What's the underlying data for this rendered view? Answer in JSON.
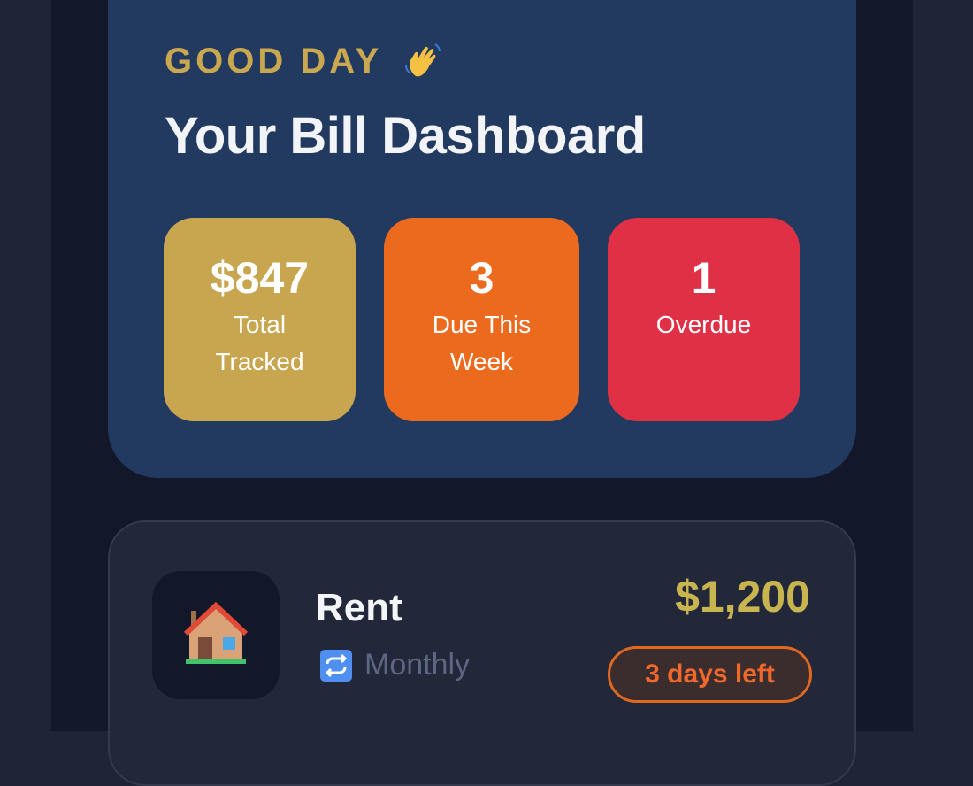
{
  "header": {
    "greeting": "GOOD DAY",
    "greeting_icon": "waving-hand-icon",
    "title": "Your Bill Dashboard"
  },
  "stats": [
    {
      "value": "$847",
      "label": "Total Tracked",
      "color": "#c7a64f"
    },
    {
      "value": "3",
      "label": "Due This Week",
      "color": "#ec6a1e"
    },
    {
      "value": "1",
      "label": "Overdue",
      "color": "#e03046"
    }
  ],
  "bills": [
    {
      "icon": "house-icon",
      "name": "Rent",
      "frequency_icon": "repeat-icon",
      "frequency": "Monthly",
      "amount": "$1,200",
      "status": "3 days left",
      "status_color": "#f0682a"
    }
  ]
}
